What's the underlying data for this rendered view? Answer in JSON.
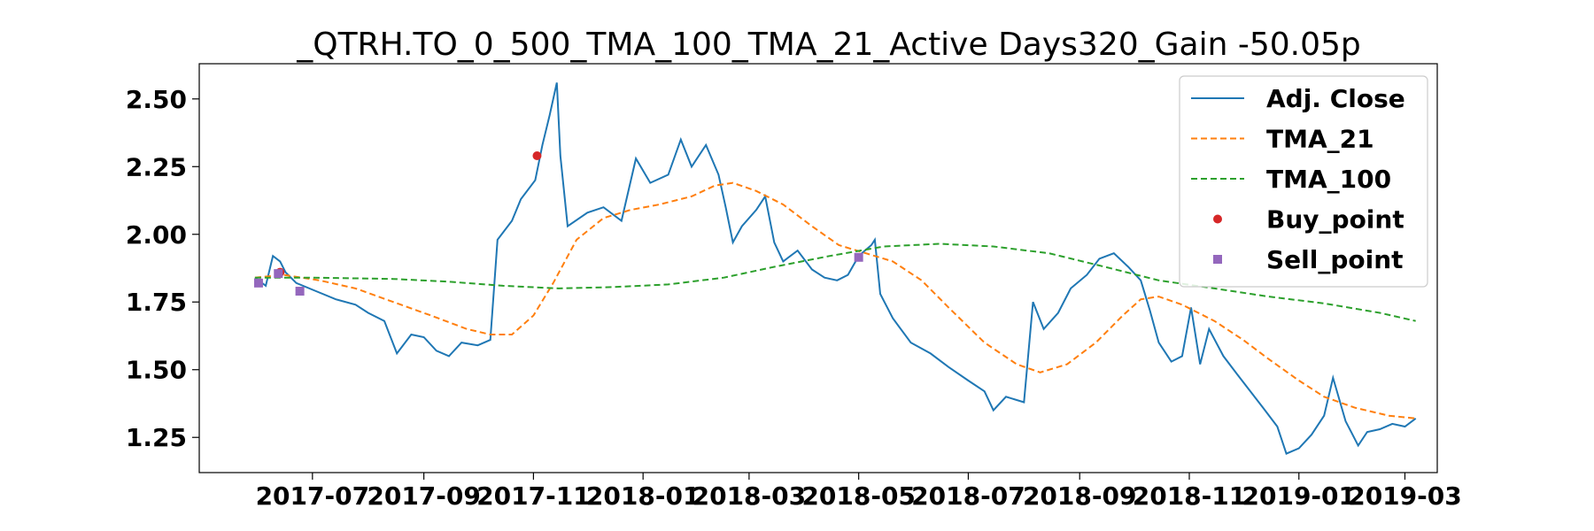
{
  "chart_data": {
    "type": "line",
    "title": "_QTRH.TO_0_500_TMA_100_TMA_21_Active Days320_Gain -50.05p",
    "xlabel": "",
    "ylabel": "",
    "xlim": [
      "2017-04-29",
      "2019-03-19"
    ],
    "ylim": [
      1.12,
      2.63
    ],
    "x_ticks": [
      "2017-07",
      "2017-09",
      "2017-11",
      "2018-01",
      "2018-03",
      "2018-05",
      "2018-07",
      "2018-09",
      "2018-11",
      "2019-01",
      "2019-03"
    ],
    "y_ticks": [
      "1.25",
      "1.50",
      "1.75",
      "2.00",
      "2.25",
      "2.50"
    ],
    "grid": false,
    "legend_position": "upper-right",
    "series": [
      {
        "name": "Adj. Close",
        "style": "solid",
        "color": "#1f77b4",
        "points": [
          [
            "2017-05-30",
            1.84
          ],
          [
            "2017-06-05",
            1.81
          ],
          [
            "2017-06-09",
            1.92
          ],
          [
            "2017-06-13",
            1.9
          ],
          [
            "2017-06-16",
            1.86
          ],
          [
            "2017-06-22",
            1.82
          ],
          [
            "2017-07-03",
            1.79
          ],
          [
            "2017-07-14",
            1.76
          ],
          [
            "2017-07-25",
            1.74
          ],
          [
            "2017-08-01",
            1.71
          ],
          [
            "2017-08-10",
            1.68
          ],
          [
            "2017-08-17",
            1.56
          ],
          [
            "2017-08-25",
            1.63
          ],
          [
            "2017-09-01",
            1.62
          ],
          [
            "2017-09-08",
            1.57
          ],
          [
            "2017-09-15",
            1.55
          ],
          [
            "2017-09-22",
            1.6
          ],
          [
            "2017-10-01",
            1.59
          ],
          [
            "2017-10-08",
            1.61
          ],
          [
            "2017-10-12",
            1.98
          ],
          [
            "2017-10-20",
            2.05
          ],
          [
            "2017-10-25",
            2.13
          ],
          [
            "2017-11-02",
            2.2
          ],
          [
            "2017-11-06",
            2.33
          ],
          [
            "2017-11-10",
            2.44
          ],
          [
            "2017-11-14",
            2.56
          ],
          [
            "2017-11-16",
            2.29
          ],
          [
            "2017-11-20",
            2.03
          ],
          [
            "2017-12-01",
            2.08
          ],
          [
            "2017-12-10",
            2.1
          ],
          [
            "2017-12-20",
            2.05
          ],
          [
            "2017-12-28",
            2.28
          ],
          [
            "2018-01-05",
            2.19
          ],
          [
            "2018-01-15",
            2.22
          ],
          [
            "2018-01-22",
            2.35
          ],
          [
            "2018-01-28",
            2.25
          ],
          [
            "2018-02-05",
            2.33
          ],
          [
            "2018-02-12",
            2.22
          ],
          [
            "2018-02-16",
            2.1
          ],
          [
            "2018-02-20",
            1.97
          ],
          [
            "2018-02-25",
            2.03
          ],
          [
            "2018-03-05",
            2.09
          ],
          [
            "2018-03-10",
            2.14
          ],
          [
            "2018-03-15",
            1.97
          ],
          [
            "2018-03-20",
            1.9
          ],
          [
            "2018-03-28",
            1.94
          ],
          [
            "2018-04-05",
            1.87
          ],
          [
            "2018-04-12",
            1.84
          ],
          [
            "2018-04-19",
            1.83
          ],
          [
            "2018-04-25",
            1.85
          ],
          [
            "2018-05-01",
            1.92
          ],
          [
            "2018-05-08",
            1.96
          ],
          [
            "2018-05-10",
            1.98
          ],
          [
            "2018-05-13",
            1.78
          ],
          [
            "2018-05-20",
            1.69
          ],
          [
            "2018-05-30",
            1.6
          ],
          [
            "2018-06-10",
            1.56
          ],
          [
            "2018-06-20",
            1.51
          ],
          [
            "2018-07-01",
            1.46
          ],
          [
            "2018-07-10",
            1.42
          ],
          [
            "2018-07-15",
            1.35
          ],
          [
            "2018-07-22",
            1.4
          ],
          [
            "2018-08-01",
            1.38
          ],
          [
            "2018-08-06",
            1.75
          ],
          [
            "2018-08-12",
            1.65
          ],
          [
            "2018-08-20",
            1.71
          ],
          [
            "2018-08-27",
            1.8
          ],
          [
            "2018-09-05",
            1.85
          ],
          [
            "2018-09-12",
            1.91
          ],
          [
            "2018-09-20",
            1.93
          ],
          [
            "2018-09-28",
            1.88
          ],
          [
            "2018-10-05",
            1.83
          ],
          [
            "2018-10-10",
            1.72
          ],
          [
            "2018-10-15",
            1.6
          ],
          [
            "2018-10-22",
            1.53
          ],
          [
            "2018-10-28",
            1.55
          ],
          [
            "2018-11-02",
            1.73
          ],
          [
            "2018-11-07",
            1.52
          ],
          [
            "2018-11-12",
            1.65
          ],
          [
            "2018-11-20",
            1.55
          ],
          [
            "2018-11-28",
            1.48
          ],
          [
            "2018-12-05",
            1.42
          ],
          [
            "2018-12-12",
            1.36
          ],
          [
            "2018-12-20",
            1.29
          ],
          [
            "2018-12-25",
            1.19
          ],
          [
            "2019-01-01",
            1.21
          ],
          [
            "2019-01-08",
            1.26
          ],
          [
            "2019-01-15",
            1.33
          ],
          [
            "2019-01-20",
            1.47
          ],
          [
            "2019-01-27",
            1.31
          ],
          [
            "2019-02-03",
            1.22
          ],
          [
            "2019-02-08",
            1.27
          ],
          [
            "2019-02-15",
            1.28
          ],
          [
            "2019-02-22",
            1.3
          ],
          [
            "2019-03-01",
            1.29
          ],
          [
            "2019-03-07",
            1.32
          ]
        ]
      },
      {
        "name": "TMA_21",
        "style": "dashed",
        "color": "#ff7f0e",
        "points": [
          [
            "2017-05-30",
            1.84
          ],
          [
            "2017-06-15",
            1.85
          ],
          [
            "2017-07-05",
            1.83
          ],
          [
            "2017-07-25",
            1.8
          ],
          [
            "2017-08-15",
            1.75
          ],
          [
            "2017-09-05",
            1.7
          ],
          [
            "2017-09-25",
            1.65
          ],
          [
            "2017-10-08",
            1.63
          ],
          [
            "2017-10-20",
            1.63
          ],
          [
            "2017-11-01",
            1.7
          ],
          [
            "2017-11-12",
            1.82
          ],
          [
            "2017-11-25",
            1.98
          ],
          [
            "2017-12-10",
            2.06
          ],
          [
            "2017-12-25",
            2.09
          ],
          [
            "2018-01-10",
            2.11
          ],
          [
            "2018-01-28",
            2.14
          ],
          [
            "2018-02-10",
            2.18
          ],
          [
            "2018-02-20",
            2.19
          ],
          [
            "2018-03-05",
            2.16
          ],
          [
            "2018-03-20",
            2.11
          ],
          [
            "2018-04-05",
            2.03
          ],
          [
            "2018-04-20",
            1.96
          ],
          [
            "2018-05-05",
            1.93
          ],
          [
            "2018-05-20",
            1.9
          ],
          [
            "2018-06-05",
            1.83
          ],
          [
            "2018-06-20",
            1.73
          ],
          [
            "2018-07-10",
            1.6
          ],
          [
            "2018-07-28",
            1.52
          ],
          [
            "2018-08-10",
            1.49
          ],
          [
            "2018-08-25",
            1.52
          ],
          [
            "2018-09-10",
            1.6
          ],
          [
            "2018-09-25",
            1.7
          ],
          [
            "2018-10-05",
            1.76
          ],
          [
            "2018-10-15",
            1.77
          ],
          [
            "2018-10-28",
            1.74
          ],
          [
            "2018-11-15",
            1.68
          ],
          [
            "2018-12-01",
            1.61
          ],
          [
            "2018-12-15",
            1.54
          ],
          [
            "2019-01-01",
            1.46
          ],
          [
            "2019-01-15",
            1.4
          ],
          [
            "2019-02-01",
            1.36
          ],
          [
            "2019-02-20",
            1.33
          ],
          [
            "2019-03-07",
            1.32
          ]
        ]
      },
      {
        "name": "TMA_100",
        "style": "dashed",
        "color": "#2ca02c",
        "points": [
          [
            "2017-05-30",
            1.84
          ],
          [
            "2017-07-01",
            1.84
          ],
          [
            "2017-08-15",
            1.835
          ],
          [
            "2017-09-15",
            1.825
          ],
          [
            "2017-10-15",
            1.81
          ],
          [
            "2017-11-15",
            1.8
          ],
          [
            "2017-12-15",
            1.805
          ],
          [
            "2018-01-15",
            1.815
          ],
          [
            "2018-02-15",
            1.84
          ],
          [
            "2018-03-15",
            1.88
          ],
          [
            "2018-04-15",
            1.92
          ],
          [
            "2018-05-15",
            1.955
          ],
          [
            "2018-06-15",
            1.965
          ],
          [
            "2018-07-15",
            1.955
          ],
          [
            "2018-08-15",
            1.93
          ],
          [
            "2018-09-15",
            1.88
          ],
          [
            "2018-10-15",
            1.83
          ],
          [
            "2018-11-15",
            1.8
          ],
          [
            "2018-12-15",
            1.77
          ],
          [
            "2019-01-15",
            1.745
          ],
          [
            "2019-02-15",
            1.71
          ],
          [
            "2019-03-07",
            1.68
          ]
        ]
      }
    ],
    "markers": [
      {
        "name": "Buy_point",
        "shape": "circle",
        "color": "#d62728",
        "points": [
          [
            "2017-06-13",
            1.86
          ],
          [
            "2017-11-03",
            2.29
          ]
        ]
      },
      {
        "name": "Sell_point",
        "shape": "square",
        "color": "#9467bd",
        "points": [
          [
            "2017-06-01",
            1.82
          ],
          [
            "2017-06-12",
            1.855
          ],
          [
            "2017-06-24",
            1.79
          ],
          [
            "2018-05-01",
            1.915
          ]
        ]
      }
    ]
  }
}
